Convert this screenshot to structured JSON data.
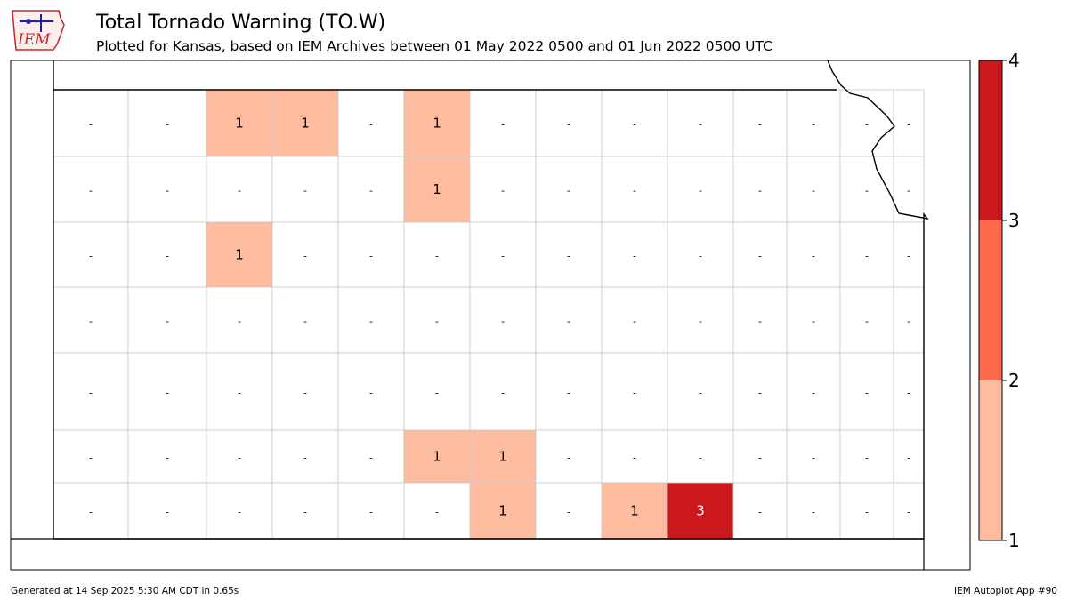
{
  "header": {
    "logo_text": "IEM",
    "title": "Total Tornado Warning (TO.W)",
    "subtitle": "Plotted for Kansas, based on IEM Archives  between 01 May 2022 0500 and 01 Jun 2022 0500 UTC"
  },
  "footer": {
    "generated": "Generated at 14 Sep 2025 5:30 AM CDT in 0.65s",
    "app": "IEM Autoplot App #90"
  },
  "legend": {
    "labels": [
      "1",
      "2",
      "3",
      "4"
    ],
    "colors": [
      "#fdbba0",
      "#fe6a4c",
      "#cb181d"
    ]
  },
  "map": {
    "state": "Kansas",
    "no_data_symbol": "-",
    "fill_colors": {
      "1": "#fdbba0",
      "3": "#cb181d"
    },
    "counties_with_warnings": [
      {
        "row": 1,
        "col": 3,
        "value": 1
      },
      {
        "row": 1,
        "col": 4,
        "value": 1
      },
      {
        "row": 1,
        "col": 6,
        "value": 1
      },
      {
        "row": 2,
        "col": 6,
        "value": 1
      },
      {
        "row": 3,
        "col": 3,
        "value": 1
      },
      {
        "row": 6,
        "col": 6,
        "value": 1
      },
      {
        "row": 6,
        "col": 7,
        "value": 1
      },
      {
        "row": 7,
        "col": 7,
        "value": 1
      },
      {
        "row": 7,
        "col": 9,
        "value": 1
      },
      {
        "row": 7,
        "col": 10,
        "value": 3
      }
    ]
  }
}
